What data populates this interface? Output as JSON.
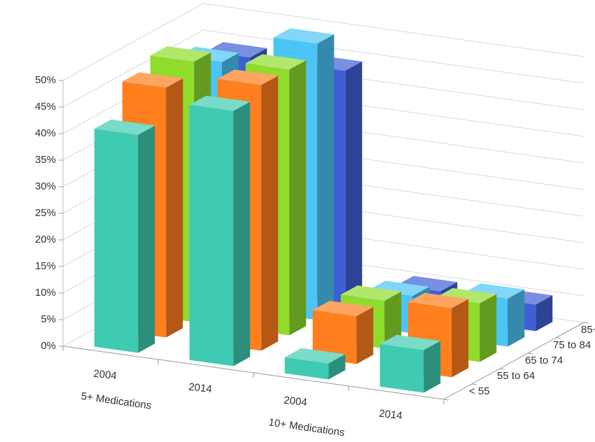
{
  "chart_data": {
    "type": "bar3d",
    "categories": [
      "2004",
      "2014",
      "2004",
      "2014"
    ],
    "category_groups": [
      "5+ Medications",
      "10+ Medications"
    ],
    "series": [
      {
        "name": "< 55",
        "color": "#3fcbb1",
        "values": [
          41,
          48,
          3,
          8
        ]
      },
      {
        "name": "55 to 64",
        "color": "#ff7f1e",
        "values": [
          47,
          50,
          9,
          13
        ]
      },
      {
        "name": "65 to 74",
        "color": "#8fdc2c",
        "values": [
          49,
          50,
          9,
          11
        ]
      },
      {
        "name": "75 to 84",
        "color": "#4cc4f5",
        "values": [
          46,
          52,
          7,
          9
        ]
      },
      {
        "name": "85+",
        "color": "#3f5fd6",
        "values": [
          44,
          44,
          5,
          5
        ]
      }
    ],
    "ylim": [
      0,
      50
    ],
    "yticks": [
      {
        "value": 0,
        "label": "0%"
      },
      {
        "value": 5,
        "label": "5%"
      },
      {
        "value": 10,
        "label": "10%"
      },
      {
        "value": 15,
        "label": "15%"
      },
      {
        "value": 20,
        "label": "20%"
      },
      {
        "value": 25,
        "label": "25%"
      },
      {
        "value": 30,
        "label": "30%"
      },
      {
        "value": 35,
        "label": "35%"
      },
      {
        "value": 40,
        "label": "40%"
      },
      {
        "value": 45,
        "label": "45%"
      },
      {
        "value": 50,
        "label": "50%"
      }
    ],
    "grid": true
  }
}
